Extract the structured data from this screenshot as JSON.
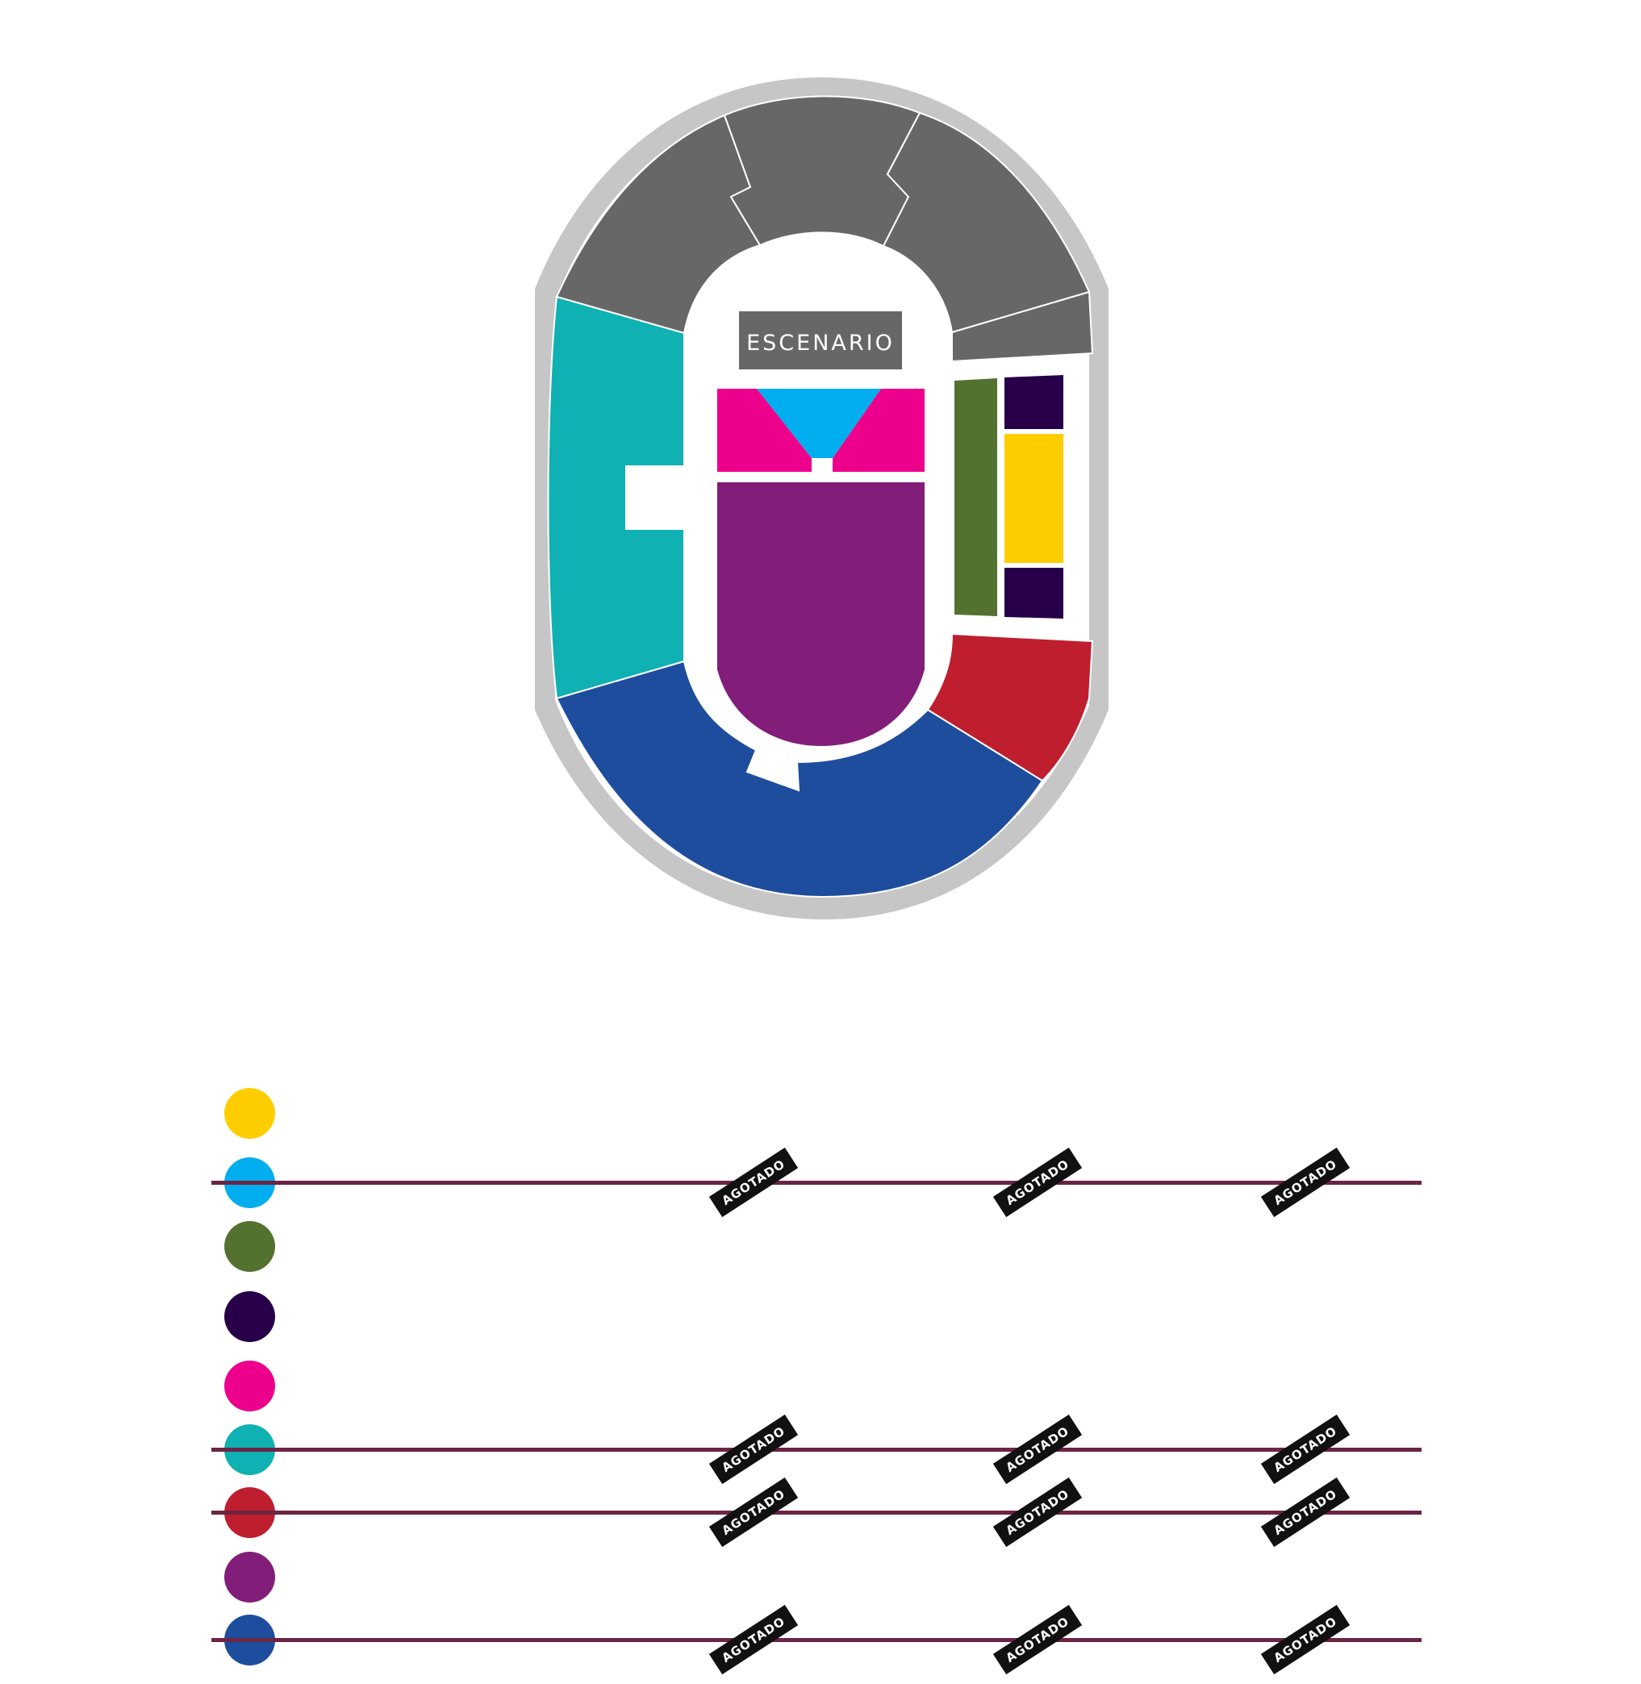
{
  "map": {
    "stage_label": "ESCENARIO",
    "colors": {
      "outer_ring": "#c6c6c6",
      "upper_stands": "#676767",
      "stage_box": "#676767",
      "west_stand": "#0fb1b2",
      "south_stand": "#1e4d9d",
      "southeast_stand": "#be1e2d",
      "front_pit_left_right": "#ec008c",
      "front_pit_center": "#00aeef",
      "general_floor": "#831d7a",
      "east_green": "#53722f",
      "east_dark": "#270049",
      "east_yellow": "#fecd00"
    }
  },
  "legend": {
    "sold_out_label": "AGOTADO",
    "line_color": "#6b2443",
    "rows": [
      {
        "color": "#fecd00",
        "sold_out": false
      },
      {
        "color": "#00aeef",
        "sold_out": true
      },
      {
        "color": "#53722f",
        "sold_out": false
      },
      {
        "color": "#270049",
        "sold_out": false
      },
      {
        "color": "#ec008c",
        "sold_out": false
      },
      {
        "color": "#0fb1b2",
        "sold_out": true
      },
      {
        "color": "#be1e2d",
        "sold_out": true
      },
      {
        "color": "#831d7a",
        "sold_out": false
      },
      {
        "color": "#1e4d9d",
        "sold_out": true
      }
    ]
  }
}
